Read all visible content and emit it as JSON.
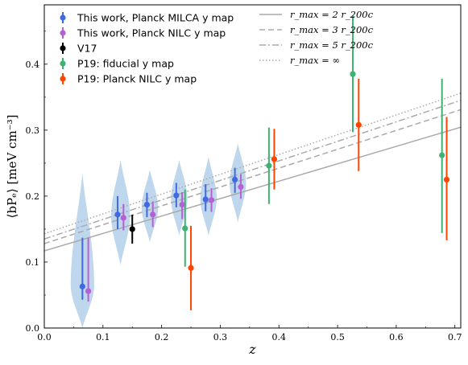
{
  "chart_data": {
    "type": "scatter",
    "xlabel": "z",
    "ylabel": "⟨bPₑ⟩ [meV cm⁻³]",
    "xlim": [
      0.0,
      0.71
    ],
    "ylim": [
      0.0,
      0.49
    ],
    "xticks": [
      "0.0",
      "0.1",
      "0.2",
      "0.3",
      "0.4",
      "0.5",
      "0.6",
      "0.7"
    ],
    "xtick_values": [
      0.0,
      0.1,
      0.2,
      0.3,
      0.4,
      0.5,
      0.6,
      0.7
    ],
    "yticks": [
      "0.0",
      "0.1",
      "0.2",
      "0.3",
      "0.4"
    ],
    "ytick_values": [
      0.0,
      0.1,
      0.2,
      0.3,
      0.4
    ],
    "grid": false,
    "legend_placement": "top-left",
    "series": [
      {
        "name": "This work, Planck MILCA y map",
        "color": "#4169e1",
        "points": [
          {
            "x": 0.065,
            "y": 0.063,
            "lo": 0.043,
            "hi": 0.137
          },
          {
            "x": 0.125,
            "y": 0.172,
            "lo": 0.15,
            "hi": 0.2
          },
          {
            "x": 0.175,
            "y": 0.187,
            "lo": 0.168,
            "hi": 0.205
          },
          {
            "x": 0.225,
            "y": 0.201,
            "lo": 0.183,
            "hi": 0.22
          },
          {
            "x": 0.275,
            "y": 0.195,
            "lo": 0.177,
            "hi": 0.218
          },
          {
            "x": 0.325,
            "y": 0.225,
            "lo": 0.205,
            "hi": 0.243
          }
        ]
      },
      {
        "name": "This work, Planck NILC y map",
        "color": "#b560d4",
        "points": [
          {
            "x": 0.075,
            "y": 0.056,
            "lo": 0.04,
            "hi": 0.137
          },
          {
            "x": 0.135,
            "y": 0.167,
            "lo": 0.148,
            "hi": 0.188
          },
          {
            "x": 0.185,
            "y": 0.172,
            "lo": 0.153,
            "hi": 0.192
          },
          {
            "x": 0.235,
            "y": 0.187,
            "lo": 0.165,
            "hi": 0.206
          },
          {
            "x": 0.285,
            "y": 0.194,
            "lo": 0.176,
            "hi": 0.212
          },
          {
            "x": 0.335,
            "y": 0.214,
            "lo": 0.196,
            "hi": 0.233
          }
        ]
      },
      {
        "name": "V17",
        "color": "#000000",
        "points": [
          {
            "x": 0.15,
            "y": 0.15,
            "lo": 0.128,
            "hi": 0.172
          }
        ]
      },
      {
        "name": "P19: fiducial y map",
        "color": "#3cb371",
        "points": [
          {
            "x": 0.24,
            "y": 0.151,
            "lo": 0.093,
            "hi": 0.21
          },
          {
            "x": 0.383,
            "y": 0.246,
            "lo": 0.188,
            "hi": 0.304
          },
          {
            "x": 0.526,
            "y": 0.385,
            "lo": 0.297,
            "hi": 0.474
          },
          {
            "x": 0.678,
            "y": 0.262,
            "lo": 0.144,
            "hi": 0.378
          }
        ]
      },
      {
        "name": "P19: Planck NILC y map",
        "color": "#ff4500",
        "points": [
          {
            "x": 0.25,
            "y": 0.091,
            "lo": 0.027,
            "hi": 0.155
          },
          {
            "x": 0.392,
            "y": 0.256,
            "lo": 0.21,
            "hi": 0.302
          },
          {
            "x": 0.536,
            "y": 0.308,
            "lo": 0.238,
            "hi": 0.378
          },
          {
            "x": 0.686,
            "y": 0.225,
            "lo": 0.133,
            "hi": 0.32
          }
        ]
      }
    ],
    "model_lines": [
      {
        "name": "r_max = 2 r_200c",
        "label_html": "r<sub>max</sub> = 2 r<sub>200c</sub>",
        "style": "solid",
        "intercept": 0.117,
        "slope": 0.264
      },
      {
        "name": "r_max = 3 r_200c",
        "label_html": "r<sub>max</sub> = 3 r<sub>200c</sub>",
        "style": "dashed",
        "intercept": 0.128,
        "slope": 0.286
      },
      {
        "name": "r_max = 5 r_200c",
        "label_html": "r<sub>max</sub> = 5 r<sub>200c</sub>",
        "style": "dashdot",
        "intercept": 0.135,
        "slope": 0.296
      },
      {
        "name": "r_max = ∞",
        "label_html": "r<sub>max</sub> = ∞",
        "style": "dotted",
        "intercept": 0.143,
        "slope": 0.3
      }
    ],
    "violins": [
      {
        "x": 0.065,
        "ylo": 0.0,
        "yhi": 0.235,
        "peak": 0.065,
        "halfwidth": 0.02
      },
      {
        "x": 0.13,
        "ylo": 0.095,
        "yhi": 0.255,
        "peak": 0.17,
        "halfwidth": 0.016
      },
      {
        "x": 0.18,
        "ylo": 0.13,
        "yhi": 0.24,
        "peak": 0.182,
        "halfwidth": 0.014
      },
      {
        "x": 0.23,
        "ylo": 0.14,
        "yhi": 0.255,
        "peak": 0.196,
        "halfwidth": 0.014
      },
      {
        "x": 0.28,
        "ylo": 0.14,
        "yhi": 0.26,
        "peak": 0.196,
        "halfwidth": 0.014
      },
      {
        "x": 0.33,
        "ylo": 0.16,
        "yhi": 0.28,
        "peak": 0.22,
        "halfwidth": 0.014
      }
    ],
    "violin_color": "#a9c9e6"
  }
}
